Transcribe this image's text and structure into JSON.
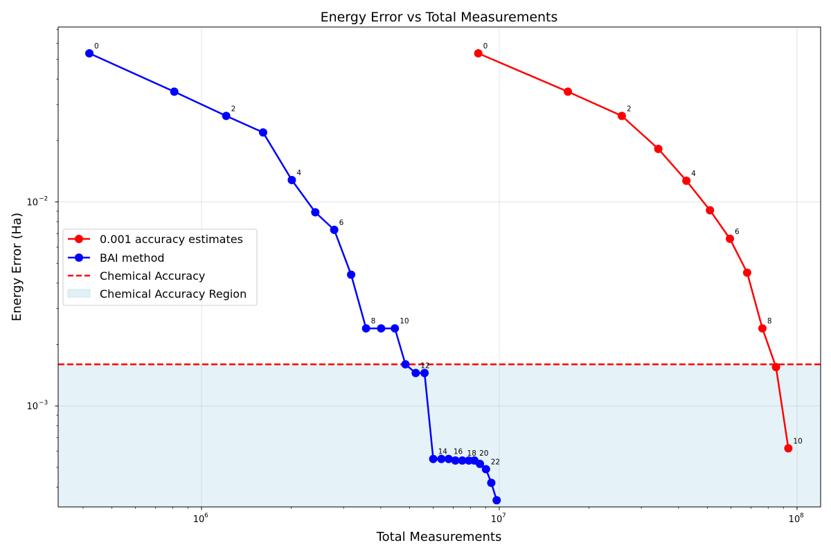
{
  "chart_data": {
    "type": "line",
    "title": "Energy Error vs Total Measurements",
    "xlabel": "Total Measurements",
    "ylabel": "Energy Error (Ha)",
    "xscale": "log",
    "yscale": "log",
    "xlim": [
      330000,
      120000000
    ],
    "ylim": [
      0.00032,
      0.072
    ],
    "grid": true,
    "legend_position": "center-left",
    "x_tick_labels": [
      {
        "value": 1000000,
        "base": "10",
        "exp": "6"
      },
      {
        "value": 10000000,
        "base": "10",
        "exp": "7"
      },
      {
        "value": 100000000,
        "base": "10",
        "exp": "8"
      }
    ],
    "y_tick_labels": [
      {
        "value": 0.001,
        "base": "10",
        "exp": "−3"
      },
      {
        "value": 0.01,
        "base": "10",
        "exp": "−2"
      }
    ],
    "x_minor_ticks": [
      400000,
      500000,
      600000,
      700000,
      800000,
      900000,
      2000000,
      3000000,
      4000000,
      5000000,
      6000000,
      7000000,
      8000000,
      9000000,
      20000000,
      30000000,
      40000000,
      50000000,
      60000000,
      70000000,
      80000000,
      90000000
    ],
    "y_minor_ticks": [
      0.0004,
      0.0005,
      0.0006,
      0.0007,
      0.0008,
      0.0009,
      0.002,
      0.003,
      0.004,
      0.005,
      0.006,
      0.007,
      0.008,
      0.009,
      0.02,
      0.03,
      0.04,
      0.05,
      0.06,
      0.07
    ],
    "series": [
      {
        "name": "0.001 accuracy estimates",
        "color": "#ff0000",
        "x": [
          8500000,
          17000000,
          25800000,
          34200000,
          42500000,
          51000000,
          59500000,
          68000000,
          76500000,
          85000000,
          93500000
        ],
        "y": [
          0.0535,
          0.0347,
          0.0264,
          0.0182,
          0.0127,
          0.0091,
          0.0066,
          0.0045,
          0.0024,
          0.00155,
          0.00062
        ],
        "annotations": [
          {
            "index": 0,
            "text": "0"
          },
          {
            "index": 2,
            "text": "2"
          },
          {
            "index": 4,
            "text": "4"
          },
          {
            "index": 6,
            "text": "6"
          },
          {
            "index": 8,
            "text": "8"
          },
          {
            "index": 10,
            "text": "10"
          }
        ]
      },
      {
        "name": "BAI method",
        "color": "#0000ff",
        "x": [
          420000,
          810000,
          1210000,
          1610000,
          2010000,
          2410000,
          2790000,
          3180000,
          3570000,
          4010000,
          4460000,
          4840000,
          5240000,
          5610000,
          6000000,
          6390000,
          6760000,
          7120000,
          7510000,
          7900000,
          8250000,
          8610000,
          9020000,
          9400000,
          9800000
        ],
        "y": [
          0.0535,
          0.0347,
          0.0264,
          0.0219,
          0.0128,
          0.0089,
          0.0073,
          0.0044,
          0.0024,
          0.0024,
          0.0024,
          0.0016,
          0.00145,
          0.00145,
          0.00055,
          0.00055,
          0.00055,
          0.00054,
          0.00054,
          0.00054,
          0.00054,
          0.00052,
          0.00049,
          0.00042,
          0.000345
        ],
        "annotations": [
          {
            "index": 0,
            "text": "0"
          },
          {
            "index": 2,
            "text": "2"
          },
          {
            "index": 4,
            "text": "4"
          },
          {
            "index": 6,
            "text": "6"
          },
          {
            "index": 8,
            "text": "8"
          },
          {
            "index": 10,
            "text": "10"
          },
          {
            "index": 12,
            "text": "12"
          },
          {
            "index": 14,
            "text": "14"
          },
          {
            "index": 16,
            "text": "16"
          },
          {
            "index": 18,
            "text": "18"
          },
          {
            "index": 20,
            "text": "20"
          },
          {
            "index": 22,
            "text": "22"
          }
        ]
      }
    ],
    "reference_line": {
      "name": "Chemical Accuracy",
      "y": 0.0016,
      "color": "#ff0000",
      "style": "dashed"
    },
    "region": {
      "name": "Chemical Accuracy Region",
      "y_max": 0.0016,
      "color": "#add8e6"
    },
    "legend_entries": [
      "0.001 accuracy estimates",
      "BAI method",
      "Chemical Accuracy",
      "Chemical Accuracy Region"
    ]
  }
}
